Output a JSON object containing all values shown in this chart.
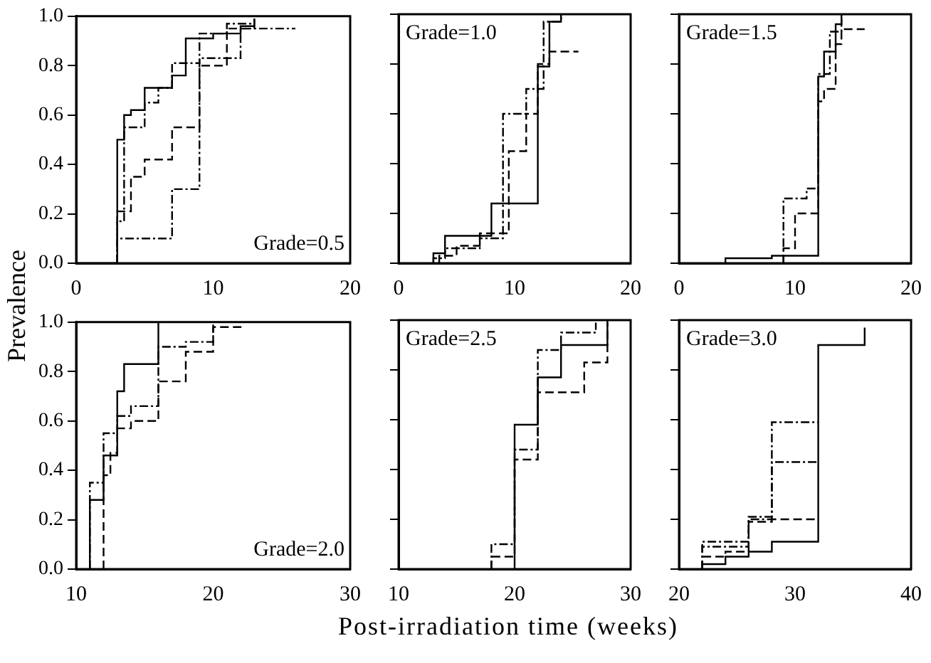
{
  "chart_data": [
    {
      "type": "step",
      "ylabel": "Prevalence",
      "annotations": [
        "Grade=0.5"
      ],
      "xlim": [
        0,
        20
      ],
      "xticks": [
        0,
        10,
        20
      ],
      "ylim": [
        0,
        1
      ],
      "yticks": [
        {
          "value": 0,
          "label": "0.0"
        },
        {
          "value": 0.2,
          "label": "0.2"
        },
        {
          "value": 0.4,
          "label": "0.4"
        },
        {
          "value": 0.6,
          "label": "0.6"
        },
        {
          "value": 0.8,
          "label": "0.8"
        },
        {
          "value": 1,
          "label": "1.0"
        }
      ],
      "grid": false,
      "legend": false,
      "marker": "none",
      "series": [
        {
          "color": "#000000",
          "line_style": "solid",
          "x": [
            0,
            3,
            3.5,
            4,
            5,
            7,
            8,
            10,
            12,
            13
          ],
          "values": [
            0,
            0.5,
            0.6,
            0.62,
            0.71,
            0.76,
            0.91,
            0.93,
            0.96,
            0.99
          ]
        },
        {
          "color": "#000000",
          "line_style": "dashed",
          "x": [
            3,
            3,
            4,
            5,
            7,
            9,
            11,
            13
          ],
          "values": [
            0,
            0.21,
            0.35,
            0.42,
            0.55,
            0.8,
            0.95,
            0.99
          ]
        },
        {
          "color": "#000000",
          "line_style": "dotted",
          "x": [
            3,
            3,
            3.5,
            5,
            6,
            7,
            9,
            11,
            13
          ],
          "values": [
            0,
            0.17,
            0.55,
            0.65,
            0.71,
            0.81,
            0.93,
            0.97,
            0.99
          ]
        },
        {
          "color": "#000000",
          "line_style": "dotted",
          "x": [
            3,
            3,
            7,
            9,
            12,
            16
          ],
          "values": [
            0,
            0.1,
            0.3,
            0.83,
            0.95,
            0.95
          ]
        }
      ]
    },
    {
      "type": "step",
      "annotations": [
        "Grade=1.0"
      ],
      "xlim": [
        0,
        20
      ],
      "xticks": [
        0,
        10,
        20
      ],
      "ylim": [
        0,
        1
      ],
      "yticks": [
        {
          "value": 0,
          "label": null
        },
        {
          "value": 0.2,
          "label": null
        },
        {
          "value": 0.4,
          "label": null
        },
        {
          "value": 0.6,
          "label": null
        },
        {
          "value": 0.8,
          "label": null
        },
        {
          "value": 1,
          "label": null
        }
      ],
      "tick_labels": "x",
      "grid": false,
      "legend": false,
      "marker": "none",
      "series": [
        {
          "color": "#000000",
          "line_style": "solid",
          "x": [
            3,
            3,
            4,
            8,
            12,
            13,
            14
          ],
          "values": [
            0,
            0.04,
            0.11,
            0.24,
            0.79,
            0.97,
            1.0
          ]
        },
        {
          "color": "#000000",
          "line_style": "dashed",
          "x": [
            3.5,
            3.5,
            5,
            7,
            9.5,
            11,
            12,
            13,
            15.5
          ],
          "values": [
            0,
            0.03,
            0.07,
            0.12,
            0.45,
            0.6,
            0.8,
            0.85,
            0.85
          ]
        },
        {
          "color": "#000000",
          "line_style": "dotted",
          "x": [
            3,
            3,
            4,
            7,
            9,
            11,
            12.5,
            14
          ],
          "values": [
            0,
            0.02,
            0.06,
            0.1,
            0.6,
            0.7,
            0.97,
            1.0
          ]
        }
      ]
    },
    {
      "type": "step",
      "annotations": [
        "Grade=1.5"
      ],
      "xlim": [
        0,
        20
      ],
      "xticks": [
        0,
        10,
        20
      ],
      "ylim": [
        0,
        1
      ],
      "yticks": [
        {
          "value": 0,
          "label": null
        },
        {
          "value": 0.2,
          "label": null
        },
        {
          "value": 0.4,
          "label": null
        },
        {
          "value": 0.6,
          "label": null
        },
        {
          "value": 0.8,
          "label": null
        },
        {
          "value": 1,
          "label": null
        }
      ],
      "tick_labels": "x",
      "grid": false,
      "legend": false,
      "marker": "none",
      "series": [
        {
          "color": "#000000",
          "line_style": "solid",
          "x": [
            4,
            4,
            8,
            12,
            12.5,
            13.5,
            14
          ],
          "values": [
            0,
            0.02,
            0.03,
            0.75,
            0.85,
            0.96,
            1.0
          ]
        },
        {
          "color": "#000000",
          "line_style": "dashed",
          "x": [
            9,
            9,
            10,
            12,
            12.5,
            13.5,
            14,
            16
          ],
          "values": [
            0,
            0.06,
            0.2,
            0.65,
            0.7,
            0.88,
            0.94,
            0.94
          ]
        },
        {
          "color": "#000000",
          "line_style": "dotted",
          "x": [
            9,
            9,
            11,
            12,
            13,
            14
          ],
          "values": [
            0,
            0.26,
            0.3,
            0.76,
            0.93,
            1.0
          ]
        }
      ]
    },
    {
      "type": "step",
      "annotations": [
        "Grade=2.0"
      ],
      "xlim": [
        10,
        30
      ],
      "xticks": [
        10,
        20,
        30
      ],
      "ylim": [
        0,
        1
      ],
      "yticks": [
        {
          "value": 0,
          "label": "0.0"
        },
        {
          "value": 0.2,
          "label": "0.2"
        },
        {
          "value": 0.4,
          "label": "0.4"
        },
        {
          "value": 0.6,
          "label": "0.6"
        },
        {
          "value": 0.8,
          "label": "0.8"
        },
        {
          "value": 1,
          "label": "1.0"
        }
      ],
      "grid": false,
      "legend": false,
      "marker": "none",
      "series": [
        {
          "color": "#000000",
          "line_style": "solid",
          "x": [
            11,
            11,
            12,
            13,
            13.5,
            16
          ],
          "values": [
            0,
            0.28,
            0.46,
            0.72,
            0.83,
            1.0
          ]
        },
        {
          "color": "#000000",
          "line_style": "dashed",
          "x": [
            12,
            12,
            12.5,
            13,
            14,
            16,
            18,
            20,
            22
          ],
          "values": [
            0,
            0.38,
            0.47,
            0.57,
            0.6,
            0.76,
            0.88,
            0.98,
            1.0
          ]
        },
        {
          "color": "#000000",
          "line_style": "dotted",
          "x": [
            11,
            11,
            12,
            13,
            14,
            16,
            18,
            20
          ],
          "values": [
            0,
            0.35,
            0.55,
            0.62,
            0.66,
            0.9,
            0.92,
            0.99
          ]
        }
      ]
    },
    {
      "type": "step",
      "xlabel": "Post-irradiation time (weeks)",
      "annotations": [
        "Grade=2.5"
      ],
      "xlim": [
        10,
        30
      ],
      "xticks": [
        10,
        20,
        30
      ],
      "ylim": [
        0,
        1
      ],
      "yticks": [
        {
          "value": 0,
          "label": null
        },
        {
          "value": 0.2,
          "label": null
        },
        {
          "value": 0.4,
          "label": null
        },
        {
          "value": 0.6,
          "label": null
        },
        {
          "value": 0.8,
          "label": null
        },
        {
          "value": 1,
          "label": null
        }
      ],
      "tick_labels": "x",
      "grid": false,
      "legend": false,
      "marker": "none",
      "series": [
        {
          "color": "#000000",
          "line_style": "solid",
          "x": [
            20,
            20,
            22,
            24,
            28
          ],
          "values": [
            0,
            0.58,
            0.77,
            0.9,
            0.99
          ]
        },
        {
          "color": "#000000",
          "line_style": "dashed",
          "x": [
            18,
            18,
            20,
            22,
            24,
            26,
            28
          ],
          "values": [
            0,
            0.05,
            0.44,
            0.71,
            0.71,
            0.83,
            1.0
          ]
        },
        {
          "color": "#000000",
          "line_style": "dotted",
          "x": [
            18,
            18,
            20,
            22,
            24,
            27
          ],
          "values": [
            0,
            0.1,
            0.48,
            0.88,
            0.95,
            0.99
          ]
        }
      ]
    },
    {
      "type": "step",
      "annotations": [
        "Grade=3.0"
      ],
      "xlim": [
        20,
        40
      ],
      "xticks": [
        20,
        30,
        40
      ],
      "ylim": [
        0,
        1
      ],
      "yticks": [
        {
          "value": 0,
          "label": null
        },
        {
          "value": 0.2,
          "label": null
        },
        {
          "value": 0.4,
          "label": null
        },
        {
          "value": 0.6,
          "label": null
        },
        {
          "value": 0.8,
          "label": null
        },
        {
          "value": 1,
          "label": null
        }
      ],
      "tick_labels": "x",
      "grid": false,
      "legend": false,
      "marker": "none",
      "series": [
        {
          "color": "#000000",
          "line_style": "solid",
          "x": [
            22,
            22,
            24,
            26,
            28,
            32,
            36
          ],
          "values": [
            0,
            0.02,
            0.05,
            0.07,
            0.11,
            0.9,
            0.97
          ]
        },
        {
          "color": "#000000",
          "line_style": "dashed",
          "x": [
            22,
            22,
            24,
            26,
            28,
            32
          ],
          "values": [
            0,
            0.05,
            0.07,
            0.19,
            0.2,
            0.2
          ]
        },
        {
          "color": "#000000",
          "line_style": "dotted",
          "x": [
            22,
            22,
            26,
            28,
            32
          ],
          "values": [
            0,
            0.11,
            0.21,
            0.59,
            0.59
          ]
        },
        {
          "color": "#000000",
          "line_style": "dotted",
          "x": [
            22,
            22,
            26,
            28,
            32
          ],
          "values": [
            0,
            0.09,
            0.2,
            0.43,
            0.43
          ]
        }
      ]
    }
  ]
}
